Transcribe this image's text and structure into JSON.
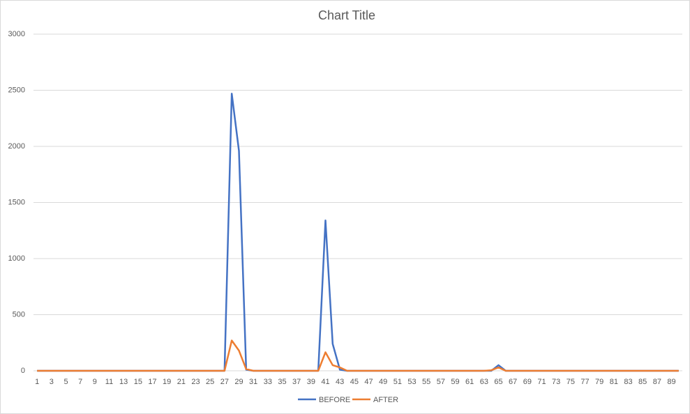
{
  "chart_data": {
    "type": "line",
    "title": "Chart Title",
    "categories": [
      1,
      null,
      3,
      null,
      5,
      null,
      7,
      null,
      9,
      null,
      11,
      null,
      13,
      null,
      15,
      null,
      17,
      null,
      19,
      null,
      21,
      null,
      23,
      null,
      25,
      null,
      27,
      null,
      29,
      null,
      31,
      null,
      33,
      null,
      35,
      null,
      37,
      null,
      39,
      null,
      41,
      null,
      43,
      null,
      45,
      null,
      47,
      null,
      49,
      null,
      51,
      null,
      53,
      null,
      55,
      null,
      57,
      null,
      59,
      null,
      61,
      null,
      63,
      null,
      65,
      null,
      67,
      null,
      69,
      null,
      71,
      null,
      73,
      null,
      75,
      null,
      77,
      null,
      79,
      null,
      81,
      null,
      83,
      null,
      85,
      null,
      87,
      null,
      89,
      null
    ],
    "series": [
      {
        "name": "BEFORE",
        "color": "#4472c4",
        "values": [
          0,
          0,
          0,
          0,
          0,
          0,
          0,
          0,
          0,
          0,
          0,
          0,
          0,
          0,
          0,
          0,
          0,
          0,
          0,
          0,
          0,
          0,
          0,
          0,
          0,
          0,
          0,
          2470,
          1960,
          10,
          0,
          0,
          0,
          0,
          0,
          0,
          0,
          0,
          0,
          0,
          1340,
          240,
          10,
          0,
          0,
          0,
          0,
          0,
          0,
          0,
          0,
          0,
          0,
          0,
          0,
          0,
          0,
          0,
          0,
          0,
          0,
          0,
          0,
          0,
          50,
          0,
          0,
          0,
          0,
          0,
          0,
          0,
          0,
          0,
          0,
          0,
          0,
          0,
          0,
          0,
          0,
          0,
          0,
          0,
          0,
          0,
          0,
          0,
          0,
          0
        ]
      },
      {
        "name": "AFTER",
        "color": "#ed7d31",
        "values": [
          0,
          0,
          0,
          0,
          0,
          0,
          0,
          0,
          0,
          0,
          0,
          0,
          0,
          0,
          0,
          0,
          0,
          0,
          0,
          0,
          0,
          0,
          0,
          0,
          0,
          0,
          0,
          270,
          180,
          15,
          0,
          0,
          0,
          0,
          0,
          0,
          0,
          0,
          0,
          0,
          165,
          50,
          30,
          0,
          0,
          0,
          0,
          0,
          0,
          0,
          0,
          0,
          0,
          0,
          0,
          0,
          0,
          0,
          0,
          0,
          0,
          0,
          0,
          5,
          30,
          0,
          0,
          0,
          0,
          0,
          0,
          0,
          0,
          0,
          0,
          0,
          0,
          0,
          0,
          0,
          0,
          0,
          0,
          0,
          0,
          0,
          0,
          0,
          0,
          0
        ]
      }
    ],
    "ylim": [
      0,
      3000
    ],
    "yticks": [
      0,
      500,
      1000,
      1500,
      2000,
      2500,
      3000
    ],
    "grid": true,
    "legend": "bottom"
  }
}
